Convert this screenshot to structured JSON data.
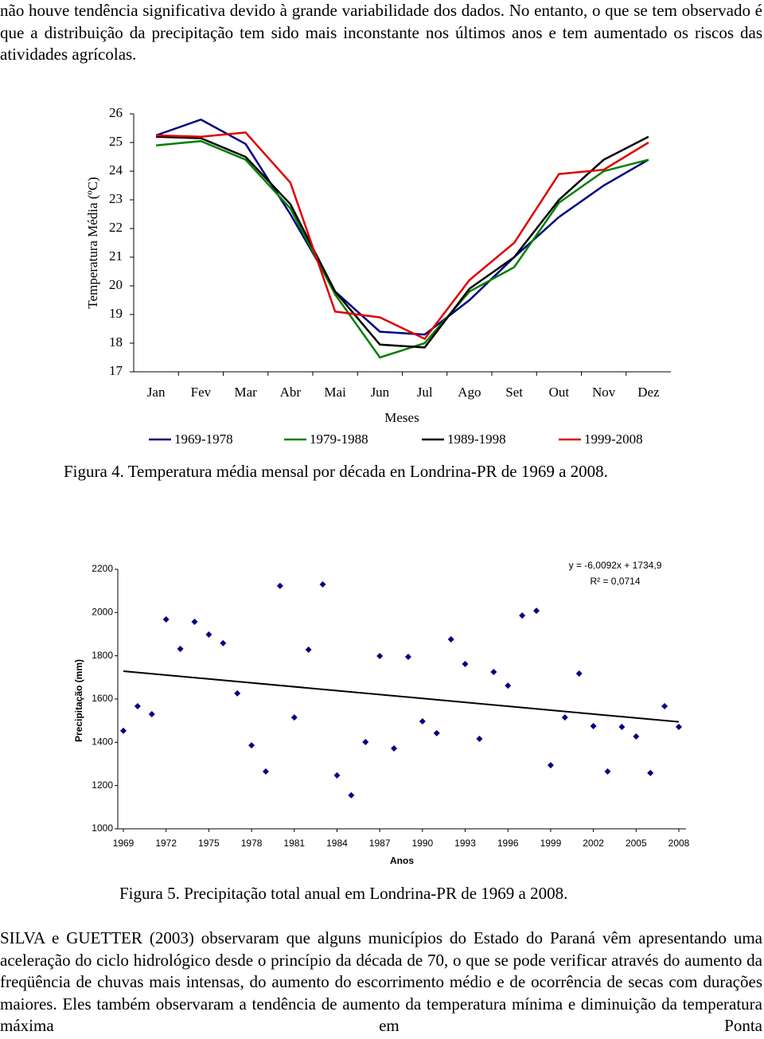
{
  "paragraphs": [
    "não houve tendência significativa devido à grande variabilidade dos dados. No entanto, o que se tem observado é que a distribuição da precipitação tem sido mais inconstante nos últimos anos e tem aumentado os riscos das atividades agrícolas.",
    "SILVA e GUETTER (2003) observaram que alguns municípios do Estado do Paraná vêm apresentando uma aceleração do ciclo hidrológico desde o princípio da década de 70, o que se pode verificar através do aumento da freqüência de chuvas mais intensas, do aumento do escorrimento médio e de ocorrência de secas com durações maiores. Eles também observaram a tendência de aumento da temperatura mínima e diminuição da temperatura máxima em Ponta"
  ],
  "chart_data": [
    {
      "type": "line",
      "caption": "Figura 4. Temperatura média mensal por década en Londrina-PR de 1969 a 2008.",
      "ylabel": "Temperatura Média (ºC)",
      "xlabel": "Meses",
      "categories": [
        "Jan",
        "Fev",
        "Mar",
        "Abr",
        "Mai",
        "Jun",
        "Jul",
        "Ago",
        "Set",
        "Out",
        "Nov",
        "Dez"
      ],
      "ylim": [
        17,
        26
      ],
      "yticks": [
        17,
        18,
        19,
        20,
        21,
        22,
        23,
        24,
        25,
        26
      ],
      "series": [
        {
          "name": "1969-1978",
          "color": "#000080",
          "values": [
            25.25,
            25.8,
            24.95,
            22.5,
            19.8,
            18.4,
            18.3,
            19.5,
            21.0,
            22.4,
            23.5,
            24.4
          ]
        },
        {
          "name": "1979-1988",
          "color": "#008000",
          "values": [
            24.9,
            25.05,
            24.4,
            22.7,
            19.7,
            17.5,
            18.0,
            19.8,
            20.65,
            22.9,
            24.0,
            24.4
          ]
        },
        {
          "name": "1989-1998",
          "color": "#000000",
          "values": [
            25.2,
            25.15,
            24.5,
            22.85,
            19.8,
            17.95,
            17.85,
            19.9,
            21.0,
            23.0,
            24.4,
            25.2
          ]
        },
        {
          "name": "1999-2008",
          "color": "#e00000",
          "values": [
            25.25,
            25.2,
            25.35,
            23.6,
            19.1,
            18.9,
            18.15,
            20.2,
            21.5,
            23.9,
            24.05,
            25.0
          ]
        }
      ]
    },
    {
      "type": "scatter",
      "caption": "Figura 5. Precipitação total anual em Londrina-PR de 1969 a 2008.",
      "ylabel": "Precipitação (mm)",
      "xlabel": "Anos",
      "color": "#000080",
      "x": [
        1969,
        1970,
        1971,
        1972,
        1973,
        1974,
        1975,
        1976,
        1977,
        1978,
        1979,
        1980,
        1981,
        1982,
        1983,
        1984,
        1985,
        1986,
        1987,
        1988,
        1989,
        1990,
        1991,
        1992,
        1993,
        1994,
        1995,
        1996,
        1997,
        1998,
        1999,
        2000,
        2001,
        2002,
        2003,
        2004,
        2005,
        2006,
        2007,
        2008
      ],
      "values": [
        1453,
        1567,
        1530,
        1968,
        1832,
        1957,
        1898,
        1858,
        1626,
        1386,
        1265,
        2123,
        1515,
        1828,
        2130,
        1247,
        1155,
        1401,
        1799,
        1372,
        1795,
        1497,
        1442,
        1876,
        1762,
        1416,
        1725,
        1662,
        1986,
        2008,
        1294,
        1515,
        1718,
        1475,
        1265,
        1471,
        1427,
        1258,
        1567,
        1471
      ],
      "xlim": [
        1969,
        2008
      ],
      "xticks": [
        1969,
        1972,
        1975,
        1978,
        1981,
        1984,
        1987,
        1990,
        1993,
        1996,
        1999,
        2002,
        2005,
        2008
      ],
      "ylim": [
        1000,
        2200
      ],
      "yticks": [
        1000,
        1200,
        1400,
        1600,
        1800,
        2000,
        2200
      ],
      "trendline": {
        "slope": -6.0092,
        "intercept": 1734.9,
        "equation": "y = -6,0092x + 1734,9",
        "r2_label": "R² = 0,0714"
      }
    }
  ]
}
